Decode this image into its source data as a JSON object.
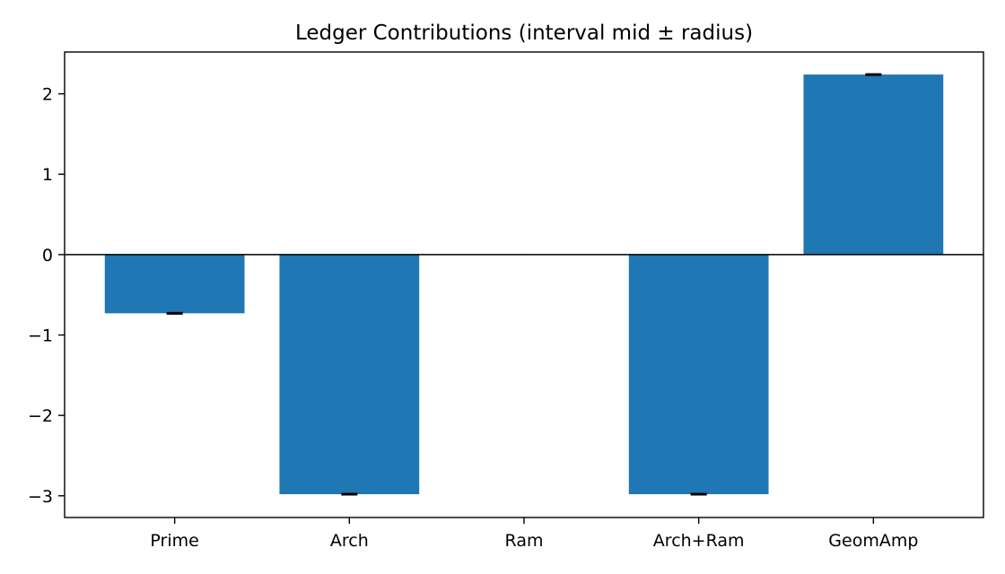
{
  "chart_data": {
    "type": "bar",
    "title": "Ledger Contributions (interval mid ± radius)",
    "xlabel": "",
    "ylabel": "",
    "categories": [
      "Prime",
      "Arch",
      "Ram",
      "Arch+Ram",
      "GeomAmp"
    ],
    "values": [
      -0.73,
      -2.98,
      0.0,
      -2.98,
      2.24
    ],
    "errors": [
      0.01,
      0.01,
      0.0,
      0.01,
      0.01
    ],
    "ylim": [
      -3.27,
      2.52
    ],
    "yticks": [
      -3,
      -2,
      -1,
      0,
      1,
      2
    ],
    "ytick_labels": [
      "−3",
      "−2",
      "−1",
      "0",
      "1",
      "2"
    ],
    "grid": false,
    "zero_line": true,
    "colors": {
      "bar": "#1f77b4",
      "axis": "#000000",
      "error": "#000000"
    }
  }
}
